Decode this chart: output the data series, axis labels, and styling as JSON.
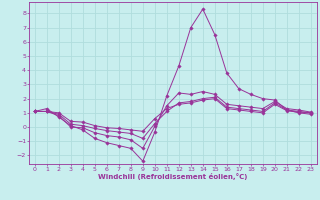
{
  "xlabel": "Windchill (Refroidissement éolien,°C)",
  "background_color": "#c8eeee",
  "grid_color": "#b0dddd",
  "line_color": "#993399",
  "xlim": [
    -0.5,
    23.5
  ],
  "ylim": [
    -2.6,
    8.8
  ],
  "xticks": [
    0,
    1,
    2,
    3,
    4,
    5,
    6,
    7,
    8,
    9,
    10,
    11,
    12,
    13,
    14,
    15,
    16,
    17,
    18,
    19,
    20,
    21,
    22,
    23
  ],
  "yticks": [
    -2,
    -1,
    0,
    1,
    2,
    3,
    4,
    5,
    6,
    7,
    8
  ],
  "lines": [
    {
      "x": [
        0,
        1,
        2,
        3,
        4,
        5,
        6,
        7,
        8,
        9,
        10,
        11,
        12,
        13,
        14,
        15,
        16,
        17,
        18,
        19,
        20,
        21,
        22,
        23
      ],
      "y": [
        1.1,
        1.3,
        0.7,
        0.1,
        -0.2,
        -0.8,
        -1.1,
        -1.3,
        -1.5,
        -2.4,
        -0.35,
        2.2,
        4.3,
        7.0,
        8.3,
        6.5,
        3.8,
        2.7,
        2.3,
        2.0,
        1.9,
        1.2,
        1.0,
        0.9
      ]
    },
    {
      "x": [
        0,
        1,
        2,
        3,
        4,
        5,
        6,
        7,
        8,
        9,
        10,
        11,
        12,
        13,
        14,
        15,
        16,
        17,
        18,
        19,
        20,
        21,
        22,
        23
      ],
      "y": [
        1.1,
        1.1,
        0.8,
        0.0,
        -0.05,
        -0.4,
        -0.6,
        -0.7,
        -0.9,
        -1.5,
        0.05,
        1.5,
        2.4,
        2.3,
        2.5,
        2.3,
        1.6,
        1.5,
        1.4,
        1.3,
        1.8,
        1.3,
        1.2,
        1.05
      ]
    },
    {
      "x": [
        0,
        1,
        2,
        3,
        4,
        5,
        6,
        7,
        8,
        9,
        10,
        11,
        12,
        13,
        14,
        15,
        16,
        17,
        18,
        19,
        20,
        21,
        22,
        23
      ],
      "y": [
        1.1,
        1.1,
        0.9,
        0.2,
        0.1,
        -0.1,
        -0.25,
        -0.35,
        -0.45,
        -0.8,
        0.25,
        1.1,
        1.7,
        1.8,
        2.0,
        2.1,
        1.4,
        1.3,
        1.2,
        1.1,
        1.7,
        1.2,
        1.1,
        1.0
      ]
    },
    {
      "x": [
        0,
        1,
        2,
        3,
        4,
        5,
        6,
        7,
        8,
        9,
        10,
        11,
        12,
        13,
        14,
        15,
        16,
        17,
        18,
        19,
        20,
        21,
        22,
        23
      ],
      "y": [
        1.1,
        1.1,
        1.0,
        0.4,
        0.35,
        0.1,
        -0.05,
        -0.1,
        -0.2,
        -0.3,
        0.6,
        1.3,
        1.6,
        1.7,
        1.9,
        2.0,
        1.3,
        1.2,
        1.1,
        1.0,
        1.6,
        1.15,
        1.05,
        1.0
      ]
    }
  ],
  "marker_indices": [
    0,
    1,
    2,
    3,
    4,
    5,
    6,
    7,
    8,
    9,
    10,
    11,
    12,
    13,
    14,
    15,
    16,
    17,
    18,
    19,
    20,
    21,
    22,
    23
  ]
}
